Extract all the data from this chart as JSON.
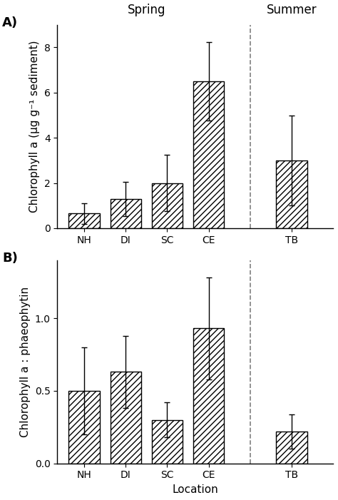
{
  "panel_A": {
    "categories": [
      "NH",
      "DI",
      "SC",
      "CE",
      "TB"
    ],
    "values": [
      0.65,
      1.3,
      2.0,
      6.5,
      3.0
    ],
    "errors": [
      0.45,
      0.75,
      1.25,
      1.75,
      2.0
    ],
    "ylabel": "Chlorophyll a (µg g⁻¹ sediment)",
    "ylim": [
      0,
      9
    ],
    "yticks": [
      0,
      2,
      4,
      6,
      8
    ],
    "spring_label": "Spring",
    "summer_label": "Summer",
    "panel_label": "A)"
  },
  "panel_B": {
    "categories": [
      "NH",
      "DI",
      "SC",
      "CE",
      "TB"
    ],
    "values": [
      0.5,
      0.63,
      0.3,
      0.93,
      0.22
    ],
    "errors": [
      0.3,
      0.25,
      0.12,
      0.35,
      0.12
    ],
    "ylabel": "Chlorophyll a : phaeophytin",
    "xlabel": "Location",
    "ylim": [
      0,
      1.4
    ],
    "yticks": [
      0,
      0.5,
      1.0
    ],
    "panel_label": "B)"
  },
  "x_positions": [
    1,
    2,
    3,
    4,
    6
  ],
  "x_lim": [
    0.35,
    7.0
  ],
  "dashed_x": 5.0,
  "bar_width": 0.75,
  "bar_color": "white",
  "hatch_pattern": "////",
  "edgecolor": "black",
  "background_color": "white",
  "tick_fontsize": 10,
  "label_fontsize": 11,
  "season_fontsize": 12,
  "panel_label_fontsize": 13
}
